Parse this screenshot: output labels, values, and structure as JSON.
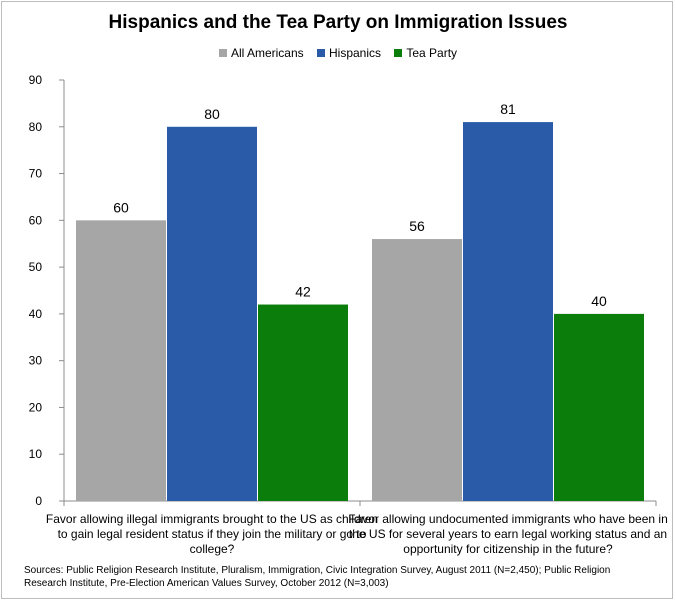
{
  "chart_data": {
    "type": "bar",
    "title": "Hispanics and the Tea Party on Immigration Issues",
    "categories": [
      "Favor allowing illegal immigrants brought to the US as children to gain legal resident status if they join the military or go to college?",
      "Favor allowing undocumented immigrants who have been in the US for several years to earn legal working status and an opportunity for citizenship in the future?"
    ],
    "category_lines": [
      [
        "Favor allowing illegal immigrants brought to the US as children",
        "to gain legal resident status if they join the military or go to",
        "college?"
      ],
      [
        "Favor allowing undocumented immigrants who have been in",
        "the US for several years to earn legal working status and an",
        "opportunity for citizenship in the future?"
      ]
    ],
    "series": [
      {
        "name": "All Americans",
        "values": [
          60,
          56
        ],
        "color": "#a6a6a6"
      },
      {
        "name": "Hispanics",
        "values": [
          80,
          81
        ],
        "color": "#2a5ba8"
      },
      {
        "name": "Tea Party",
        "values": [
          42,
          40
        ],
        "color": "#0a7d0a"
      }
    ],
    "ylim": [
      0,
      90
    ],
    "yticks": [
      0,
      10,
      20,
      30,
      40,
      50,
      60,
      70,
      80,
      90
    ],
    "grid": false,
    "legend_position": "top-center",
    "xlabel": "",
    "ylabel": ""
  },
  "sources_text": "Sources: Public Religion Research Institute, Pluralism, Immigration, Civic Integration Survey, August 2011 (N=2,450); Public Religion Research Institute, Pre-Election American Values Survey, October 2012 (N=3,003)"
}
